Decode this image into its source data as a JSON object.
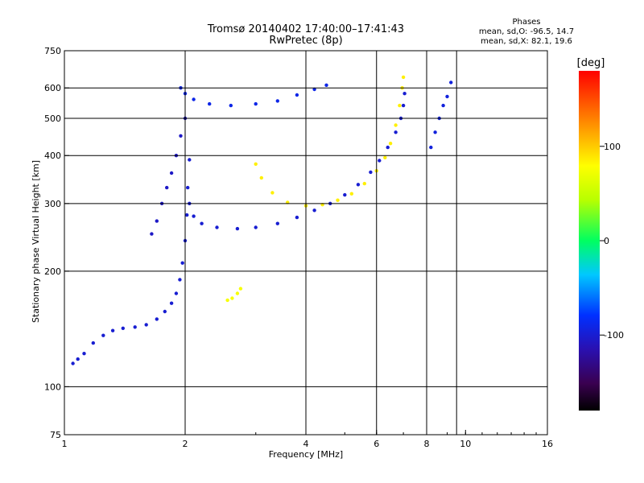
{
  "chart_data": {
    "type": "scatter",
    "title": "Tromsø 20140402 17:40:00–17:41:43",
    "subtitle": "RwPretec (8p)",
    "xlabel": "Frequency [MHz]",
    "ylabel": "Stationary phase Virtual Height [km]",
    "x_scale": "log2",
    "y_scale": "log",
    "xlim": [
      1,
      16
    ],
    "ylim": [
      75,
      750
    ],
    "x_ticks": [
      1,
      2,
      4,
      6,
      8,
      10,
      16
    ],
    "y_ticks": [
      75,
      100,
      200,
      300,
      400,
      500,
      600,
      750
    ],
    "x_gridlines": [
      2,
      4,
      6,
      8,
      9.5
    ],
    "y_gridlines": [
      100,
      200,
      300,
      400,
      500,
      600
    ],
    "grid": true,
    "stats": {
      "title": "Phases",
      "line1": "mean, sd,O: -96.5, 14.7",
      "line2": "mean, sd,X:  82.1, 19.6"
    },
    "colorbar": {
      "label": "[deg]",
      "range": [
        -180,
        180
      ],
      "ticks": [
        -100,
        0,
        100
      ],
      "colormap": "rainbow"
    },
    "traces": [
      {
        "name": "O",
        "phase": -100,
        "points": [
          [
            1.05,
            115
          ],
          [
            1.08,
            118
          ],
          [
            1.12,
            122
          ],
          [
            1.18,
            130
          ],
          [
            1.25,
            136
          ],
          [
            1.32,
            140
          ],
          [
            1.4,
            142
          ],
          [
            1.5,
            143
          ],
          [
            1.6,
            145
          ],
          [
            1.7,
            150
          ],
          [
            1.78,
            157
          ],
          [
            1.85,
            165
          ],
          [
            1.9,
            175
          ],
          [
            1.94,
            190
          ],
          [
            1.97,
            210
          ],
          [
            2.0,
            240
          ],
          [
            2.02,
            280
          ],
          [
            2.03,
            330
          ],
          [
            2.05,
            390
          ]
        ]
      },
      {
        "name": "O",
        "phase": -100,
        "points": [
          [
            2.05,
            300
          ],
          [
            2.1,
            278
          ],
          [
            2.2,
            266
          ],
          [
            2.4,
            260
          ],
          [
            2.7,
            258
          ],
          [
            3.0,
            260
          ],
          [
            3.4,
            266
          ],
          [
            3.8,
            276
          ],
          [
            4.2,
            288
          ],
          [
            4.6,
            300
          ],
          [
            5.0,
            316
          ],
          [
            5.4,
            336
          ],
          [
            5.8,
            362
          ],
          [
            6.1,
            388
          ],
          [
            6.4,
            420
          ],
          [
            6.7,
            460
          ],
          [
            6.9,
            500
          ],
          [
            7.0,
            540
          ],
          [
            7.05,
            580
          ]
        ]
      },
      {
        "name": "O",
        "phase": -90,
        "points": [
          [
            1.95,
            600
          ],
          [
            2.0,
            580
          ],
          [
            2.1,
            560
          ],
          [
            2.3,
            545
          ],
          [
            2.6,
            540
          ],
          [
            3.0,
            545
          ],
          [
            3.4,
            555
          ],
          [
            3.8,
            575
          ],
          [
            4.2,
            595
          ],
          [
            4.5,
            610
          ]
        ]
      },
      {
        "name": "X",
        "phase": 85,
        "points": [
          [
            3.0,
            380
          ],
          [
            3.1,
            350
          ],
          [
            3.3,
            320
          ],
          [
            3.6,
            302
          ],
          [
            4.0,
            296
          ],
          [
            4.4,
            298
          ],
          [
            4.8,
            306
          ],
          [
            5.2,
            318
          ],
          [
            5.6,
            338
          ],
          [
            6.0,
            365
          ],
          [
            6.3,
            395
          ],
          [
            6.5,
            430
          ],
          [
            6.7,
            480
          ],
          [
            6.85,
            540
          ],
          [
            6.95,
            600
          ],
          [
            7.0,
            640
          ]
        ]
      },
      {
        "name": "X",
        "phase": 75,
        "points": [
          [
            2.55,
            168
          ],
          [
            2.62,
            170
          ],
          [
            2.7,
            175
          ],
          [
            2.75,
            180
          ]
        ]
      },
      {
        "name": "O",
        "phase": -105,
        "points": [
          [
            1.65,
            250
          ],
          [
            1.7,
            270
          ],
          [
            1.75,
            300
          ],
          [
            1.8,
            330
          ],
          [
            1.85,
            360
          ],
          [
            1.9,
            400
          ],
          [
            1.95,
            450
          ],
          [
            2.0,
            500
          ]
        ]
      },
      {
        "name": "O",
        "phase": -95,
        "points": [
          [
            8.2,
            420
          ],
          [
            8.4,
            460
          ],
          [
            8.6,
            500
          ],
          [
            8.8,
            540
          ],
          [
            9.0,
            570
          ],
          [
            9.2,
            620
          ]
        ]
      }
    ]
  }
}
